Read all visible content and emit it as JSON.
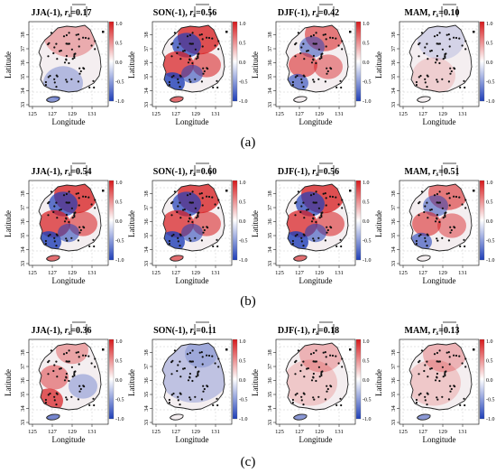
{
  "rows": [
    {
      "label": "(a)",
      "panels": [
        {
          "season": "JJA(-1),",
          "value": "0.17",
          "pattern": "north-red-south-blue",
          "intensity": 0.45
        },
        {
          "season": "SON(-1),",
          "value": "0.56",
          "pattern": "mixed-strong",
          "intensity": 0.9
        },
        {
          "season": "DJF(-1),",
          "value": "0.42",
          "pattern": "mixed-medium",
          "intensity": 0.7
        },
        {
          "season": "MAM,",
          "value": "0.10",
          "pattern": "weak",
          "intensity": 0.25
        }
      ]
    },
    {
      "label": "(b)",
      "panels": [
        {
          "season": "JJA(-1),",
          "value": "0.54",
          "pattern": "mixed-strong",
          "intensity": 0.85
        },
        {
          "season": "SON(-1),",
          "value": "0.60",
          "pattern": "mixed-strong",
          "intensity": 0.9
        },
        {
          "season": "DJF(-1),",
          "value": "0.56",
          "pattern": "mixed-strong",
          "intensity": 0.9
        },
        {
          "season": "MAM,",
          "value": "0.51",
          "pattern": "mixed-medium",
          "intensity": 0.8
        }
      ]
    },
    {
      "label": "(c)",
      "panels": [
        {
          "season": "JJA(-1),",
          "value": "0.36",
          "pattern": "south-red",
          "intensity": 0.6
        },
        {
          "season": "SON(-1),",
          "value": "0.11",
          "pattern": "weak-blue",
          "intensity": 0.3
        },
        {
          "season": "DJF(-1),",
          "value": "0.18",
          "pattern": "weak-red",
          "intensity": 0.3
        },
        {
          "season": "MAM,",
          "value": "0.13",
          "pattern": "weak-red",
          "intensity": 0.3
        }
      ]
    }
  ],
  "stat_symbol": "r",
  "stat_subscript": "s",
  "axes": {
    "xlabel": "Longitude",
    "ylabel": "Latitude",
    "xticks": [
      "125",
      "127",
      "129",
      "131"
    ],
    "yticks": [
      "33",
      "34",
      "35",
      "36",
      "37",
      "38"
    ]
  },
  "colorbar": {
    "ticks": [
      "1.0",
      "0.5",
      "0.0",
      "-0.5",
      "-1.0"
    ],
    "colors": {
      "high": "#d7191c",
      "mid": "#ffffff",
      "low": "#1f3fb8"
    }
  }
}
